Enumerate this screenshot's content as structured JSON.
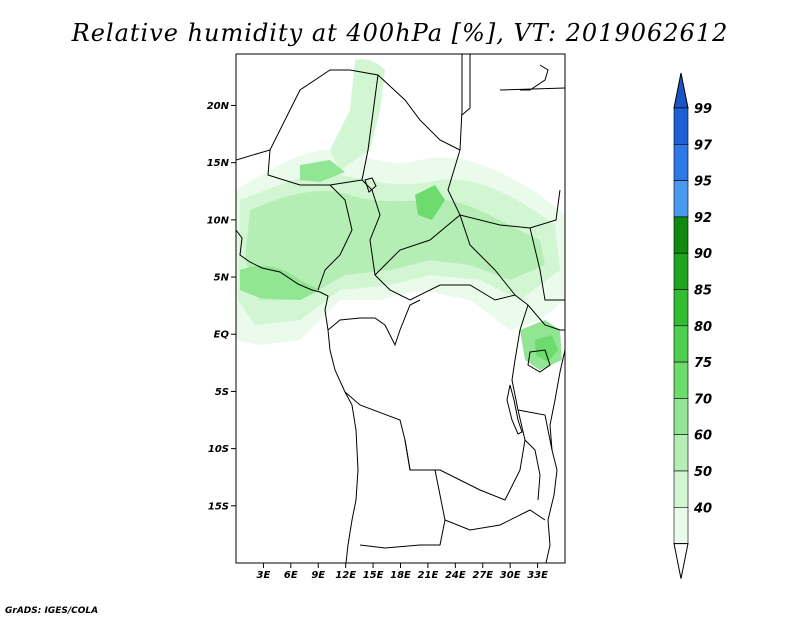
{
  "title": "Relative humidity at 400hPa [%], VT: 2019062612",
  "credit": "GrADS: IGES/COLA",
  "map": {
    "lon_range": [
      0,
      36
    ],
    "lat_range": [
      -20,
      24.5
    ],
    "x_ticks": [
      {
        "value": 3,
        "label": "3E"
      },
      {
        "value": 6,
        "label": "6E"
      },
      {
        "value": 9,
        "label": "9E"
      },
      {
        "value": 12,
        "label": "12E"
      },
      {
        "value": 15,
        "label": "15E"
      },
      {
        "value": 18,
        "label": "18E"
      },
      {
        "value": 21,
        "label": "21E"
      },
      {
        "value": 24,
        "label": "24E"
      },
      {
        "value": 27,
        "label": "27E"
      },
      {
        "value": 30,
        "label": "30E"
      },
      {
        "value": 33,
        "label": "33E"
      }
    ],
    "y_ticks": [
      {
        "value": 20,
        "label": "20N"
      },
      {
        "value": 15,
        "label": "15N"
      },
      {
        "value": 10,
        "label": "10N"
      },
      {
        "value": 5,
        "label": "5N"
      },
      {
        "value": 0,
        "label": "EQ"
      },
      {
        "value": -5,
        "label": "5S"
      },
      {
        "value": -10,
        "label": "10S"
      },
      {
        "value": -15,
        "label": "15S"
      }
    ]
  },
  "colorbar": {
    "levels": [
      {
        "label": "99",
        "color": "#1e5fd6"
      },
      {
        "label": "97",
        "color": "#2f79e6"
      },
      {
        "label": "95",
        "color": "#4a98f0"
      },
      {
        "label": "92",
        "color": "#108a10"
      },
      {
        "label": "90",
        "color": "#1fa61f"
      },
      {
        "label": "85",
        "color": "#33bd33"
      },
      {
        "label": "80",
        "color": "#4fcf4f"
      },
      {
        "label": "75",
        "color": "#6edb6e"
      },
      {
        "label": "70",
        "color": "#92e592"
      },
      {
        "label": "60",
        "color": "#b4eeb4"
      },
      {
        "label": "50",
        "color": "#d2f5d2"
      },
      {
        "label": "40",
        "color": "#ebfbeb"
      }
    ],
    "top_triangle_color": "#1a55c8",
    "bottom_triangle_color": "#ffffff"
  }
}
